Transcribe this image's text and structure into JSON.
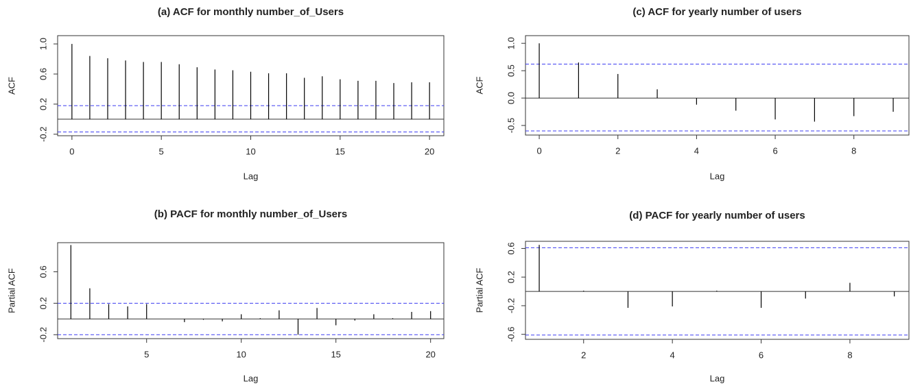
{
  "chart_data": [
    {
      "type": "acf",
      "title": "(a) ACF for monthly number_of_Users",
      "xlabel": "Lag",
      "ylabel": "ACF",
      "x": [
        0,
        1,
        2,
        3,
        4,
        5,
        6,
        7,
        8,
        9,
        10,
        11,
        12,
        13,
        14,
        15,
        16,
        17,
        18,
        19,
        20
      ],
      "values": [
        1.0,
        0.84,
        0.81,
        0.78,
        0.76,
        0.76,
        0.73,
        0.69,
        0.66,
        0.65,
        0.63,
        0.61,
        0.61,
        0.55,
        0.57,
        0.53,
        0.51,
        0.51,
        0.48,
        0.49,
        0.49
      ],
      "conf_limits": [
        0.18,
        -0.17
      ],
      "conf_color": "#3b3bf0",
      "color": "#000000",
      "xlim": [
        -0.8,
        20.8
      ],
      "ylim": [
        -0.22,
        1.11
      ],
      "xticks": [
        0,
        5,
        10,
        15,
        20
      ],
      "yticks": [
        {
          "value": 1,
          "label": "1.0"
        },
        0.6,
        0.2,
        -0.2
      ]
    },
    {
      "type": "acf",
      "title": "(b) PACF for monthly number_of_Users",
      "xlabel": "Lag",
      "ylabel": "Partial ACF",
      "x": [
        1,
        2,
        3,
        4,
        5,
        6,
        7,
        8,
        9,
        10,
        11,
        12,
        13,
        14,
        15,
        16,
        17,
        18,
        19,
        20
      ],
      "values": [
        0.94,
        0.39,
        0.19,
        0.16,
        0.19,
        0.0,
        -0.04,
        -0.01,
        -0.03,
        0.06,
        0.01,
        0.11,
        -0.2,
        0.14,
        -0.08,
        -0.02,
        0.06,
        0.01,
        0.09,
        0.1
      ],
      "conf_limits": [
        0.2,
        -0.2
      ],
      "conf_color": "#3b3bf0",
      "color": "#000000",
      "xlim": [
        0.3,
        20.7
      ],
      "ylim": [
        -0.25,
        0.97
      ],
      "xticks": [
        5,
        10,
        15,
        20
      ],
      "yticks": [
        0.6,
        0.2,
        -0.2
      ]
    },
    {
      "type": "acf",
      "title": "(c) ACF for yearly number of users",
      "xlabel": "Lag",
      "ylabel": "ACF",
      "x": [
        0,
        1,
        2,
        3,
        4,
        5,
        6,
        7,
        8,
        9
      ],
      "values": [
        1.0,
        0.65,
        0.44,
        0.16,
        -0.12,
        -0.23,
        -0.39,
        -0.43,
        -0.33,
        -0.25
      ],
      "conf_limits": [
        0.62,
        -0.6
      ],
      "conf_color": "#3b3bf0",
      "color": "#000000",
      "xlim": [
        -0.35,
        9.4
      ],
      "ylim": [
        -0.675,
        1.14
      ],
      "xticks": [
        0,
        2,
        4,
        6,
        8
      ],
      "yticks": [
        {
          "value": 1,
          "label": "1.0"
        },
        0.5,
        {
          "value": 0,
          "label": "0.0"
        },
        -0.5
      ]
    },
    {
      "type": "acf",
      "title": "(d) PACF for yearly number of users",
      "xlabel": "Lag",
      "ylabel": "Partial ACF",
      "x": [
        1,
        2,
        3,
        4,
        5,
        6,
        7,
        8,
        9
      ],
      "values": [
        0.65,
        0.01,
        -0.23,
        -0.21,
        0.01,
        -0.23,
        -0.1,
        0.12,
        -0.07
      ],
      "conf_limits": [
        0.61,
        -0.61
      ],
      "conf_color": "#3b3bf0",
      "color": "#000000",
      "xlim": [
        0.69,
        9.33
      ],
      "ylim": [
        -0.67,
        0.7
      ],
      "xticks": [
        2,
        4,
        6,
        8
      ],
      "yticks": [
        0.6,
        0.2,
        -0.2,
        -0.6
      ]
    }
  ]
}
